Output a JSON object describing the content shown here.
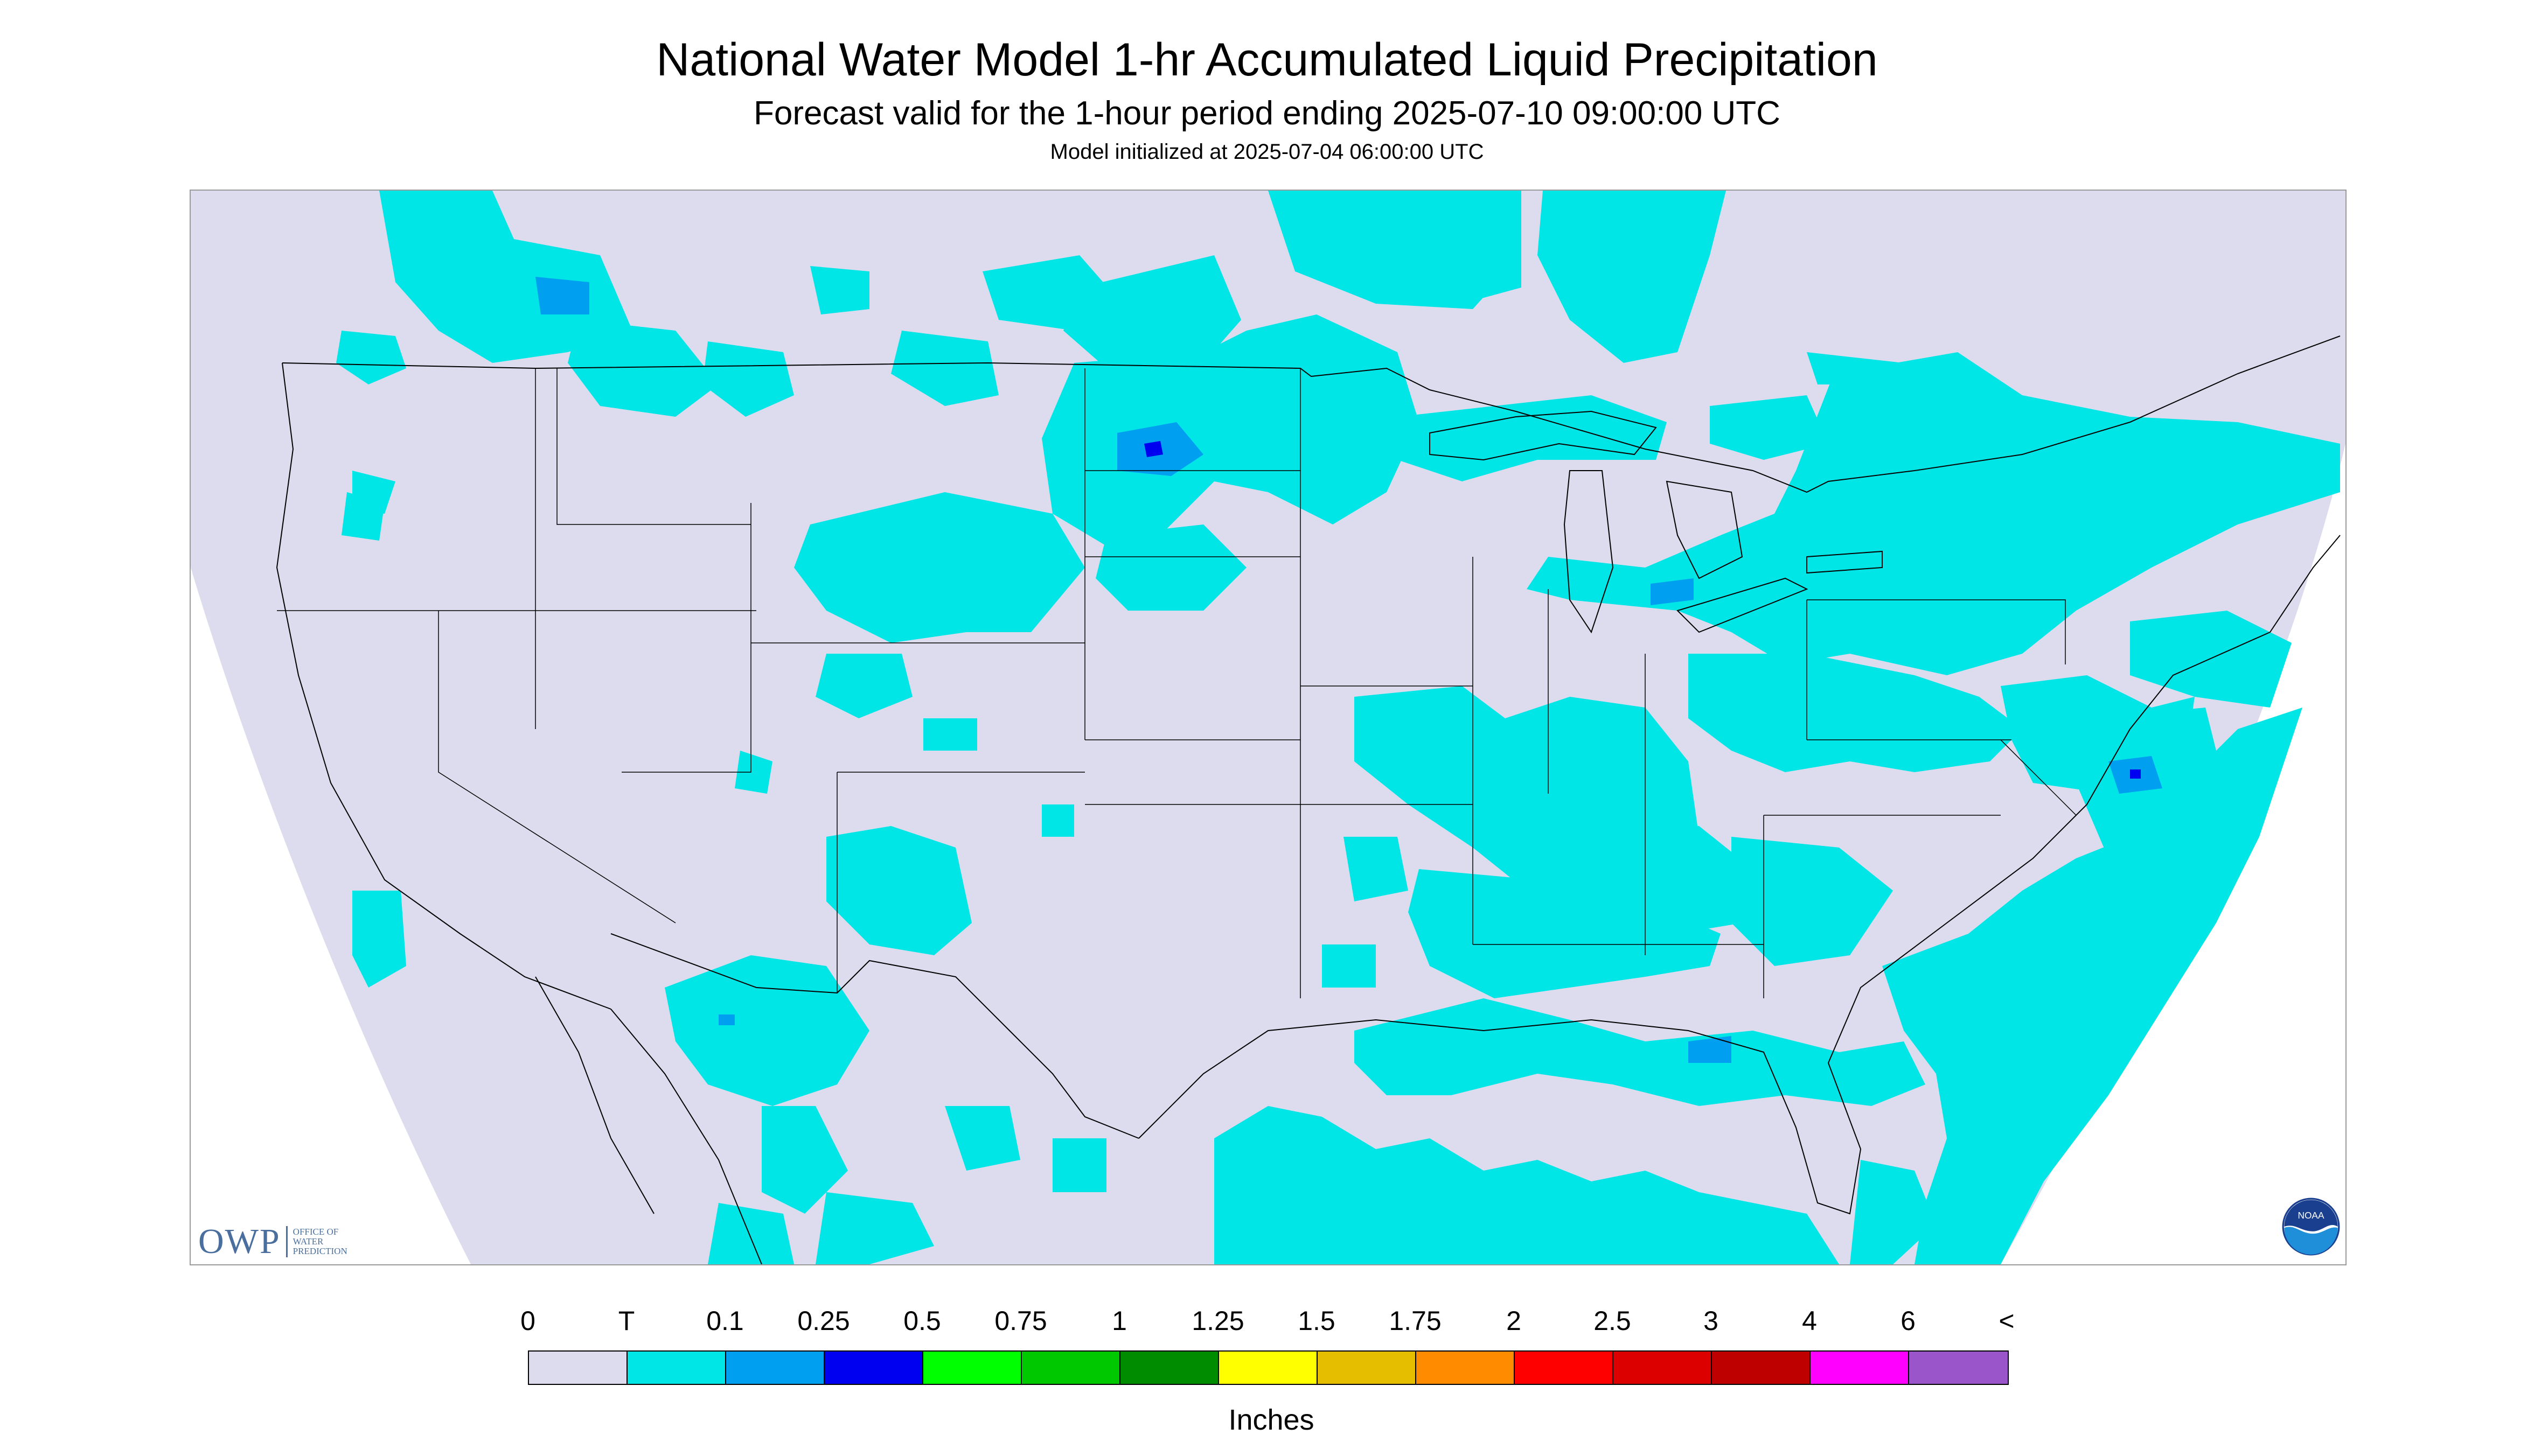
{
  "title": "National Water Model 1-hr Accumulated Liquid Precipitation",
  "subtitle": "Forecast valid for the 1-hour period ending 2025-07-10 09:00:00 UTC",
  "init_line": "Model initialized at 2025-07-04 06:00:00 UTC",
  "owp_logo": {
    "mark": "OWP",
    "lines": [
      "Office of",
      "Water",
      "Prediction"
    ]
  },
  "noaa_logo": {
    "text": "NOAA",
    "icon": "noaa-logo-icon"
  },
  "legend": {
    "tick_labels": [
      "0",
      "T",
      "0.1",
      "0.25",
      "0.5",
      "0.75",
      "1",
      "1.25",
      "1.5",
      "1.75",
      "2",
      "2.5",
      "3",
      "4",
      "6",
      "<"
    ],
    "colors": [
      "#dcdcee",
      "#00e5e5",
      "#009ff0",
      "#0000f0",
      "#00ff00",
      "#00c800",
      "#008c00",
      "#ffff00",
      "#e6be00",
      "#ff8c00",
      "#ff0000",
      "#dc0000",
      "#bf0000",
      "#ff00ff",
      "#9955c9"
    ],
    "units": "Inches"
  },
  "map_colors": {
    "no_data": "#dcdcee",
    "trace": "#00e5e5",
    "light": "#009ff0",
    "moderate": "#0000f0",
    "outline": "#000000"
  }
}
